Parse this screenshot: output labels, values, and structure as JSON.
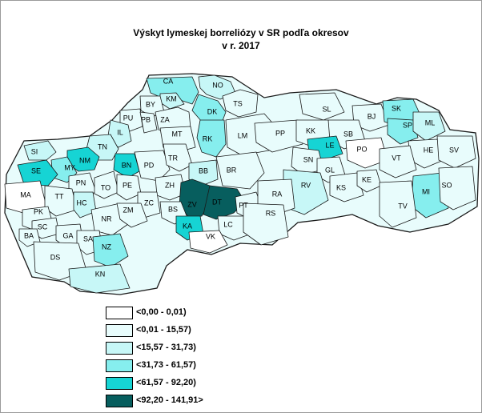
{
  "title_line1": "Výskyt lymeskej borreliózy v SR podľa okresov",
  "title_line2": "v r. 2017",
  "colors": {
    "c0": "#ffffff",
    "c1": "#e8fcfc",
    "c2": "#c7f7f7",
    "c3": "#86eeee",
    "c4": "#16d4d4",
    "c5": "#075e5e",
    "border": "#1a1a1a",
    "inner_border": "#ffffff"
  },
  "legend": [
    {
      "label": "<0,00 - 0,01)",
      "cls": "c0"
    },
    {
      "label": "<0,01 - 15,57)",
      "cls": "c1"
    },
    {
      "label": "<15,57 - 31,73)",
      "cls": "c2"
    },
    {
      "label": "<31,73 - 61,57)",
      "cls": "c3"
    },
    {
      "label": "<61,57 - 92,20)",
      "cls": "c4"
    },
    {
      "label": "<92,20 - 141,91>",
      "cls": "c5"
    }
  ],
  "districts": [
    {
      "code": "CA",
      "cls": "c3"
    },
    {
      "code": "NO",
      "cls": "c2"
    },
    {
      "code": "KM",
      "cls": "c2"
    },
    {
      "code": "TS",
      "cls": "c1"
    },
    {
      "code": "BY",
      "cls": "c1"
    },
    {
      "code": "DK",
      "cls": "c3"
    },
    {
      "code": "PU",
      "cls": "c1"
    },
    {
      "code": "PB",
      "cls": "c1"
    },
    {
      "code": "ZA",
      "cls": "c1"
    },
    {
      "code": "IL",
      "cls": "c2"
    },
    {
      "code": "MT",
      "cls": "c1"
    },
    {
      "code": "RK",
      "cls": "c3"
    },
    {
      "code": "LM",
      "cls": "c1"
    },
    {
      "code": "TN",
      "cls": "c2"
    },
    {
      "code": "SI",
      "cls": "c2"
    },
    {
      "code": "NM",
      "cls": "c4"
    },
    {
      "code": "MY",
      "cls": "c3"
    },
    {
      "code": "SE",
      "cls": "c4"
    },
    {
      "code": "BN",
      "cls": "c4"
    },
    {
      "code": "PD",
      "cls": "c1"
    },
    {
      "code": "TR",
      "cls": "c1"
    },
    {
      "code": "BB",
      "cls": "c2"
    },
    {
      "code": "BR",
      "cls": "c1"
    },
    {
      "code": "PN",
      "cls": "c1"
    },
    {
      "code": "TO",
      "cls": "c1"
    },
    {
      "code": "PE",
      "cls": "c1"
    },
    {
      "code": "ZH",
      "cls": "c1"
    },
    {
      "code": "MA",
      "cls": "c0"
    },
    {
      "code": "TT",
      "cls": "c1"
    },
    {
      "code": "HC",
      "cls": "c2"
    },
    {
      "code": "ZC",
      "cls": "c1"
    },
    {
      "code": "ZV",
      "cls": "c5"
    },
    {
      "code": "DT",
      "cls": "c5"
    },
    {
      "code": "PK",
      "cls": "c1"
    },
    {
      "code": "NR",
      "cls": "c1"
    },
    {
      "code": "ZM",
      "cls": "c1"
    },
    {
      "code": "BS",
      "cls": "c1"
    },
    {
      "code": "KA",
      "cls": "c4"
    },
    {
      "code": "PT",
      "cls": "c1"
    },
    {
      "code": "SC",
      "cls": "c1"
    },
    {
      "code": "BA",
      "cls": "c1"
    },
    {
      "code": "GA",
      "cls": "c1"
    },
    {
      "code": "SA",
      "cls": "c1"
    },
    {
      "code": "LC",
      "cls": "c1"
    },
    {
      "code": "VK",
      "cls": "c0"
    },
    {
      "code": "DS",
      "cls": "c1"
    },
    {
      "code": "NZ",
      "cls": "c3"
    },
    {
      "code": "KN",
      "cls": "c2"
    },
    {
      "code": "SL",
      "cls": "c1"
    },
    {
      "code": "BJ",
      "cls": "c1"
    },
    {
      "code": "SK",
      "cls": "c3"
    },
    {
      "code": "SP",
      "cls": "c3"
    },
    {
      "code": "ML",
      "cls": "c2"
    },
    {
      "code": "PP",
      "cls": "c1"
    },
    {
      "code": "KK",
      "cls": "c1"
    },
    {
      "code": "SB",
      "cls": "c1"
    },
    {
      "code": "HE",
      "cls": "c1"
    },
    {
      "code": "SV",
      "cls": "c1"
    },
    {
      "code": "LE",
      "cls": "c4"
    },
    {
      "code": "PO",
      "cls": "c0"
    },
    {
      "code": "VT",
      "cls": "c1"
    },
    {
      "code": "SN",
      "cls": "c1"
    },
    {
      "code": "GL",
      "cls": "c1"
    },
    {
      "code": "KS",
      "cls": "c1"
    },
    {
      "code": "KE",
      "cls": "c1"
    },
    {
      "code": "RV",
      "cls": "c2"
    },
    {
      "code": "MI",
      "cls": "c3"
    },
    {
      "code": "SO",
      "cls": "c1"
    },
    {
      "code": "RA",
      "cls": "c1"
    },
    {
      "code": "RS",
      "cls": "c1"
    },
    {
      "code": "TV",
      "cls": "c1"
    }
  ]
}
